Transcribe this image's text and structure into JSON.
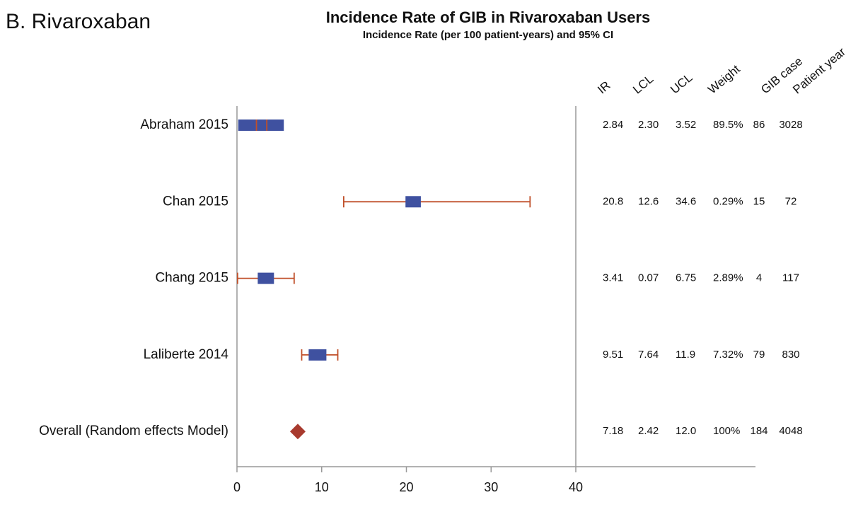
{
  "chart_data": {
    "type": "forest",
    "panel_label": "B. Rivaroxaban",
    "title": "Incidence Rate of GIB in Rivaroxaban Users",
    "subtitle": "Incidence Rate (per 100 patient-years) and 95% CI",
    "categories": [
      "Abraham 2015",
      "Chan 2015",
      "Chang 2015",
      "Laliberte 2014",
      "Overall (Random effects Model)"
    ],
    "marker": [
      "box",
      "box",
      "box",
      "box",
      "diamond"
    ],
    "box_color": "#3f51a0",
    "ci_color": "#c0502a",
    "diamond_color": "#a83a2e",
    "xlim": [
      0,
      40
    ],
    "xticks": [
      0,
      10,
      20,
      30,
      40
    ],
    "columns": [
      {
        "name": "IR",
        "values": [
          2.84,
          20.8,
          3.41,
          9.51,
          7.18
        ]
      },
      {
        "name": "LCL",
        "values": [
          2.3,
          12.6,
          0.07,
          7.64,
          2.42
        ],
        "value_labels": [
          "2.30",
          "12.6",
          "0.07",
          "7.64",
          "2.42"
        ]
      },
      {
        "name": "UCL",
        "values": [
          3.52,
          34.6,
          6.75,
          11.9,
          12
        ],
        "value_labels": [
          "3.52",
          "34.6",
          "6.75",
          "11.9",
          "12.0"
        ]
      },
      {
        "name": "Weight",
        "values": [
          89.5,
          0.29,
          2.89,
          7.32,
          100
        ],
        "value_labels": [
          "89.5%",
          "0.29%",
          "2.89%",
          "7.32%",
          "100%"
        ]
      },
      {
        "name": "GIB case",
        "values": [
          86,
          15,
          4,
          79,
          184
        ]
      },
      {
        "name": "Patient year",
        "values": [
          3028,
          72,
          117,
          830,
          4048
        ]
      }
    ]
  }
}
